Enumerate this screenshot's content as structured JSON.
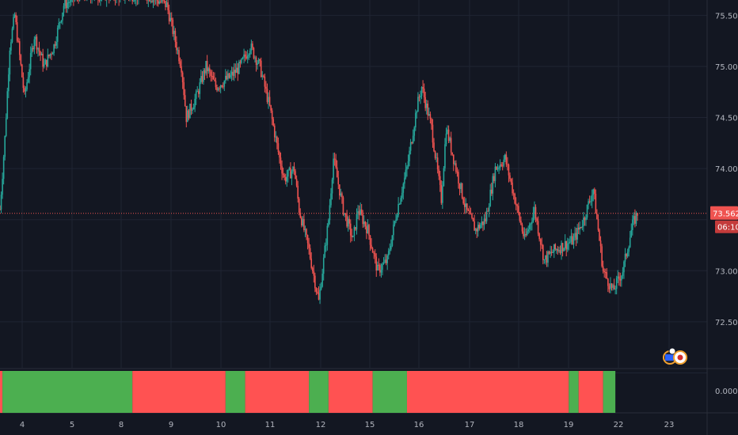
{
  "chart_data": [
    {
      "type": "candlestick",
      "title": "",
      "ylim": [
        72.05,
        75.65
      ],
      "y_ticks": [
        "75.500",
        "75.000",
        "74.500",
        "74.000",
        "73.000",
        "72.500"
      ],
      "x_ticks": [
        "4",
        "5",
        "8",
        "9",
        "10",
        "11",
        "12",
        "15",
        "16",
        "17",
        "18",
        "19",
        "22",
        "23"
      ],
      "grid": true,
      "last_price": "73.562",
      "countdown": "06:10",
      "colors": {
        "up": "#26a69a",
        "down": "#ef5350",
        "background": "#131722",
        "grid": "#1f2433",
        "price_line": "#ef5350"
      },
      "anchors": [
        [
          0,
          73.6
        ],
        [
          1,
          74.3
        ],
        [
          2,
          75.2
        ],
        [
          3,
          75.5
        ],
        [
          5,
          74.7
        ],
        [
          7,
          75.3
        ],
        [
          9,
          75.0
        ],
        [
          11,
          75.2
        ],
        [
          13,
          75.6
        ],
        [
          16,
          75.7
        ],
        [
          20,
          75.7
        ],
        [
          25,
          75.7
        ],
        [
          30,
          75.7
        ],
        [
          34,
          75.6
        ],
        [
          37,
          75.0
        ],
        [
          38,
          74.5
        ],
        [
          40,
          74.7
        ],
        [
          42,
          75.0
        ],
        [
          44,
          74.8
        ],
        [
          47,
          74.9
        ],
        [
          49,
          75.0
        ],
        [
          51,
          75.2
        ],
        [
          53,
          75.0
        ],
        [
          55,
          74.6
        ],
        [
          57,
          74.1
        ],
        [
          58,
          73.9
        ],
        [
          60,
          74.0
        ],
        [
          61,
          73.6
        ],
        [
          63,
          73.2
        ],
        [
          65,
          72.7
        ],
        [
          67,
          73.5
        ],
        [
          68,
          74.1
        ],
        [
          70,
          73.6
        ],
        [
          72,
          73.3
        ],
        [
          73,
          73.6
        ],
        [
          75,
          73.4
        ],
        [
          77,
          73.0
        ],
        [
          79,
          73.1
        ],
        [
          81,
          73.6
        ],
        [
          83,
          74.0
        ],
        [
          85,
          74.6
        ],
        [
          86,
          74.8
        ],
        [
          88,
          74.4
        ],
        [
          90,
          73.7
        ],
        [
          91,
          74.4
        ],
        [
          93,
          74.0
        ],
        [
          95,
          73.6
        ],
        [
          97,
          73.4
        ],
        [
          99,
          73.5
        ],
        [
          101,
          74.0
        ],
        [
          103,
          74.1
        ],
        [
          105,
          73.7
        ],
        [
          107,
          73.3
        ],
        [
          109,
          73.6
        ],
        [
          111,
          73.1
        ],
        [
          113,
          73.2
        ],
        [
          115,
          73.25
        ],
        [
          117,
          73.3
        ],
        [
          119,
          73.5
        ],
        [
          121,
          73.8
        ],
        [
          123,
          73.0
        ],
        [
          125,
          72.8
        ],
        [
          127,
          73.0
        ],
        [
          129,
          73.45
        ],
        [
          130,
          73.56
        ]
      ]
    },
    {
      "type": "heatmap",
      "zero_label": "0.000",
      "segments": [
        {
          "end": 0.5,
          "color": "red"
        },
        {
          "end": 27,
          "color": "green"
        },
        {
          "end": 46,
          "color": "red"
        },
        {
          "end": 50,
          "color": "green"
        },
        {
          "end": 63,
          "color": "red"
        },
        {
          "end": 67,
          "color": "green"
        },
        {
          "end": 76,
          "color": "red"
        },
        {
          "end": 83,
          "color": "green"
        },
        {
          "end": 116,
          "color": "red"
        },
        {
          "end": 118,
          "color": "green"
        },
        {
          "end": 123,
          "color": "red"
        },
        {
          "end": 125.5,
          "color": "green"
        }
      ],
      "colors": {
        "green": "#4caf50",
        "red": "#ff5252"
      }
    }
  ]
}
